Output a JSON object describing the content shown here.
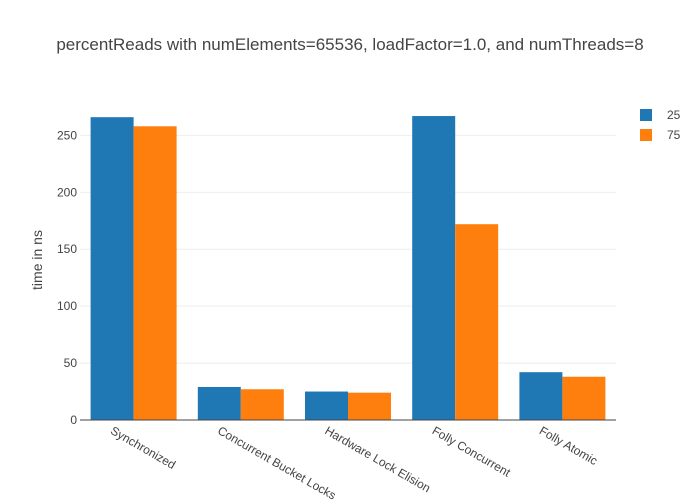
{
  "chart_data": {
    "type": "bar",
    "title": "percentReads with numElements=65536, loadFactor=1.0, and numThreads=8",
    "xlabel": "",
    "ylabel": "time in ns",
    "categories": [
      "Synchronized",
      "Concurrent Bucket Locks",
      "Hardware Lock Elision",
      "Folly Concurrent",
      "Folly Atomic"
    ],
    "series": [
      {
        "name": "25",
        "color": "#1f77b4",
        "values": [
          266,
          29,
          25,
          267,
          42
        ]
      },
      {
        "name": "75",
        "color": "#ff7f0e",
        "values": [
          258,
          27,
          24,
          172,
          38
        ]
      }
    ],
    "ylim": [
      0,
      275
    ],
    "yticks": [
      0,
      50,
      100,
      150,
      200,
      250
    ],
    "grid": true,
    "legend": "top-right"
  }
}
